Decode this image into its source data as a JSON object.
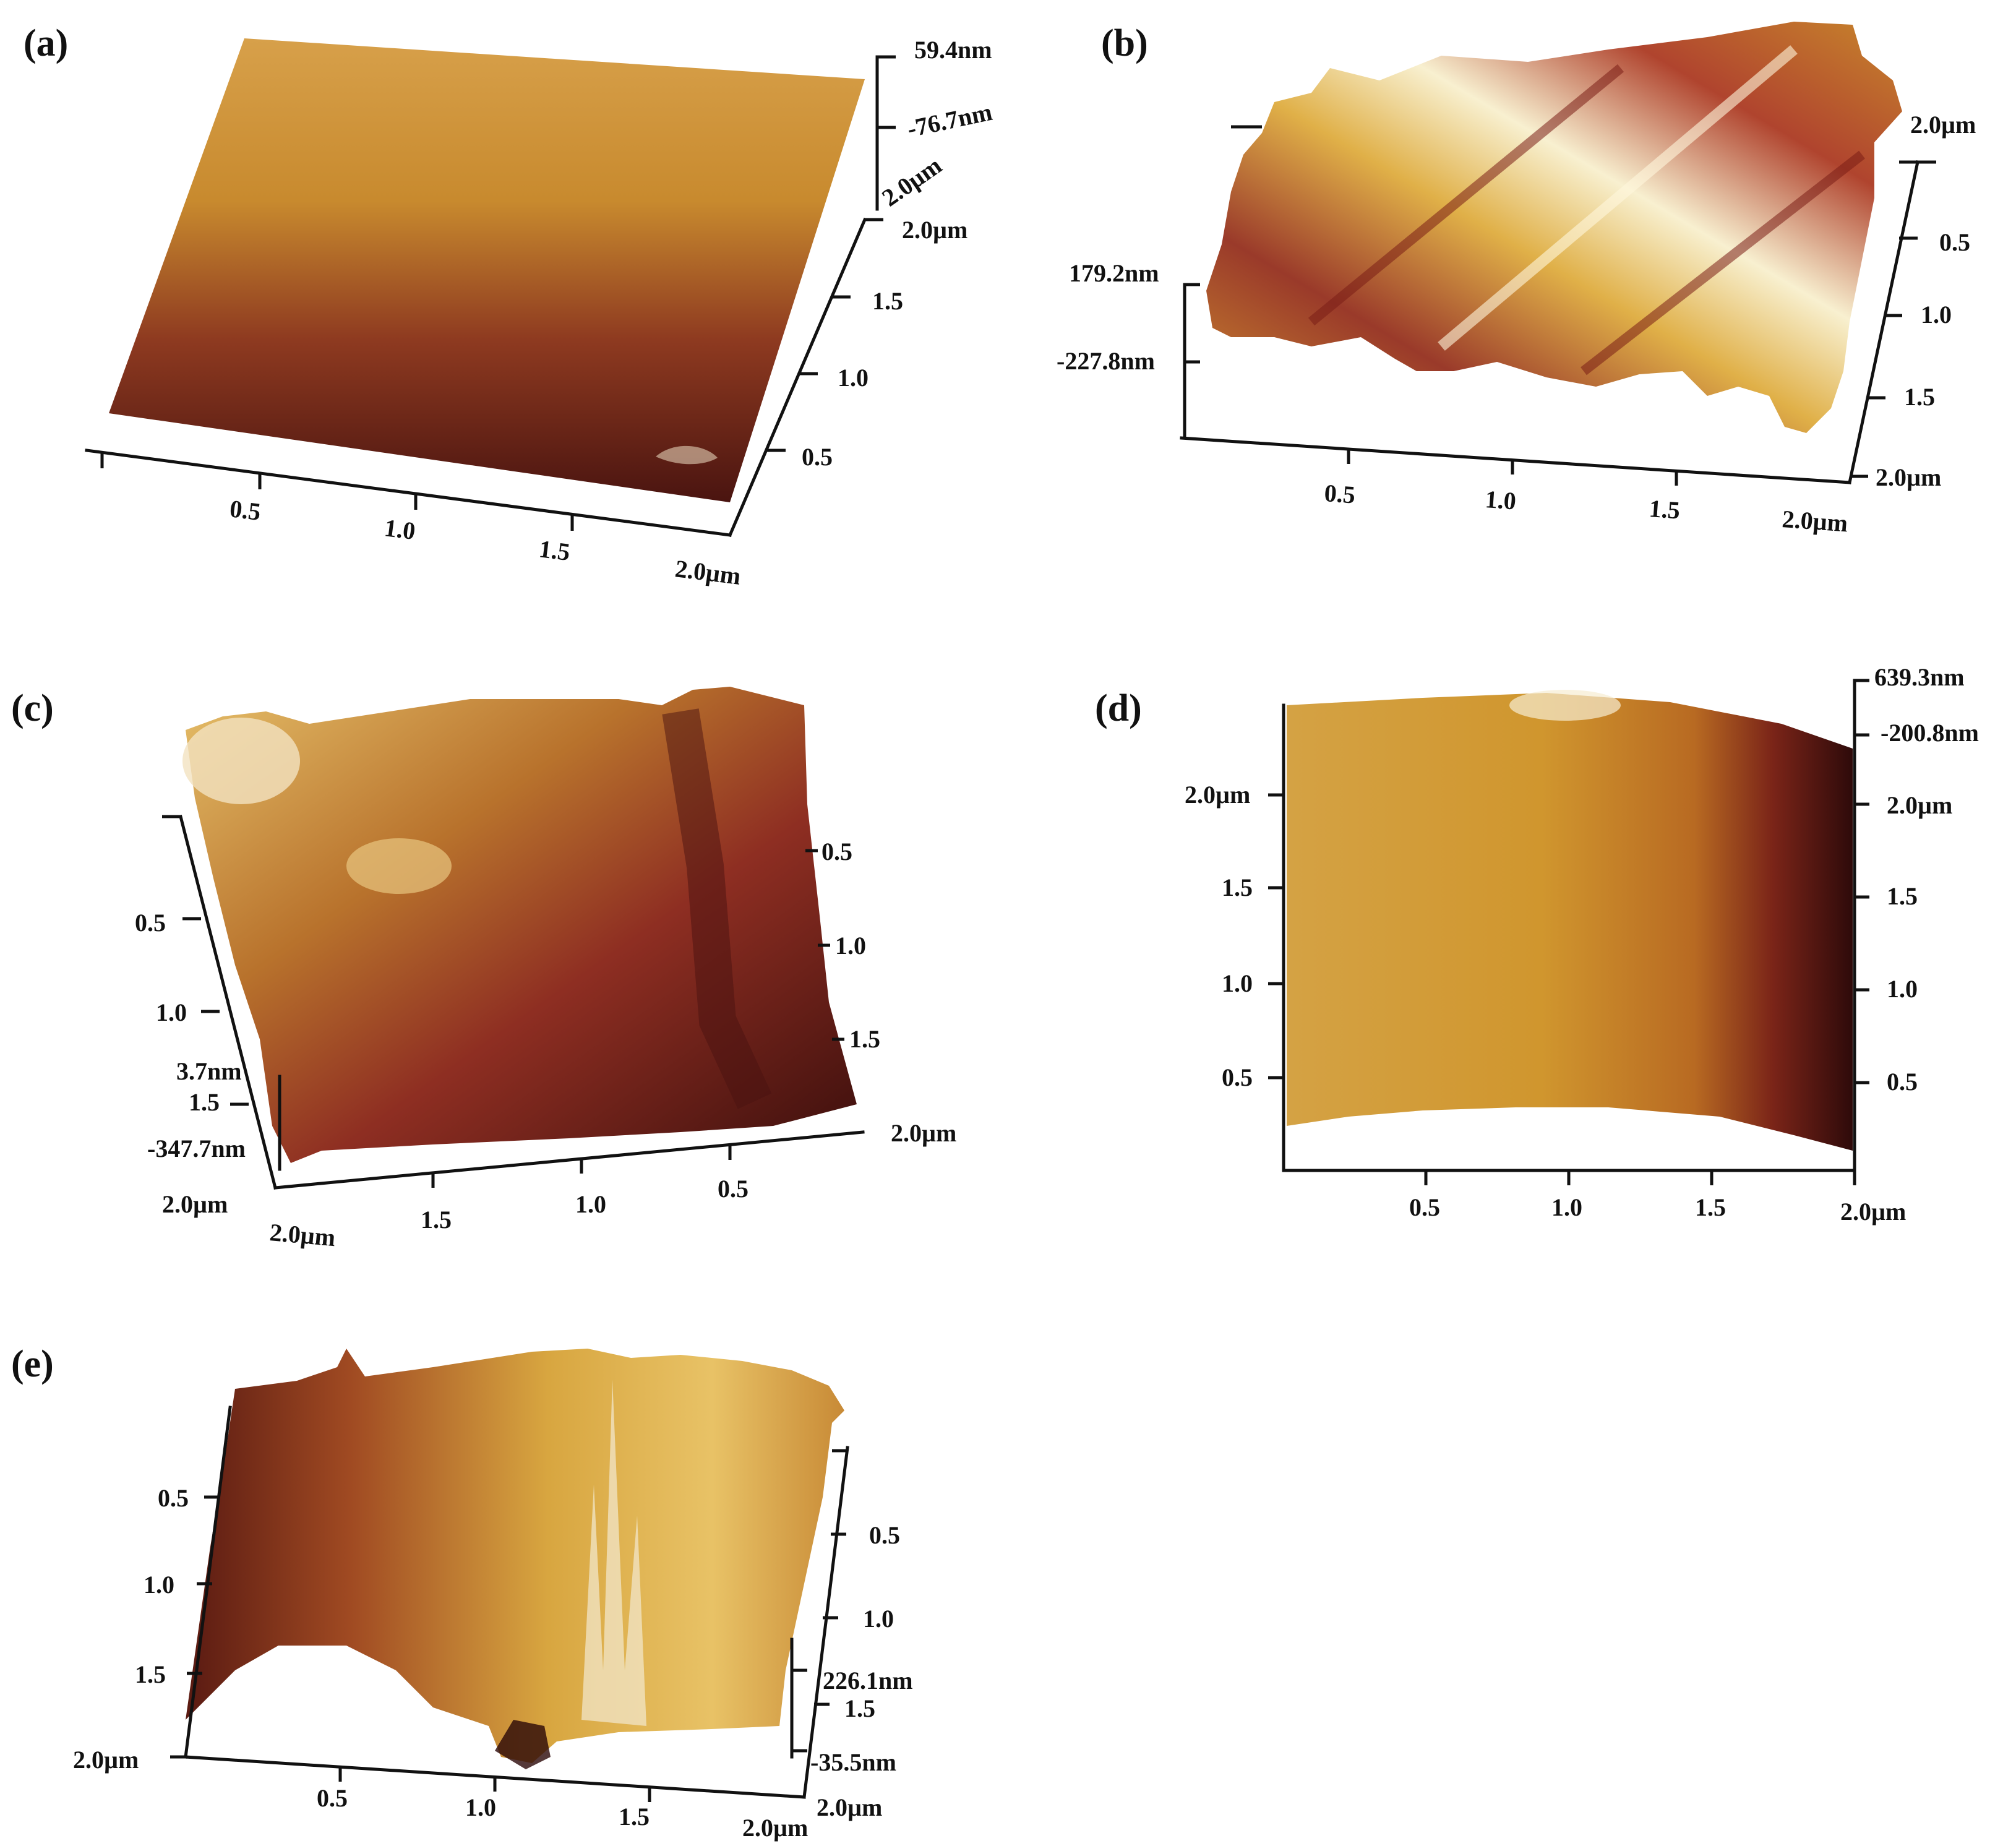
{
  "panels": [
    {
      "label": "(a)",
      "z_axis": {
        "max": "59.4nm",
        "min": "-76.7nm",
        "top_y": "2.0µm"
      },
      "x_axis": [
        "0.5",
        "1.0",
        "1.5",
        "2.0µm"
      ],
      "y_axis": [
        "0.5",
        "1.0",
        "1.5",
        "2.0µm"
      ]
    },
    {
      "label": "(b)",
      "z_axis": {
        "max": "179.2nm",
        "min": "-227.8nm"
      },
      "x_axis": [
        "0.5",
        "1.0",
        "1.5",
        "2.0µm"
      ],
      "y_axis": [
        "2.0µm",
        "0.5",
        "1.0",
        "1.5",
        "2.0µm"
      ]
    },
    {
      "label": "(c)",
      "z_axis": {
        "max": "3.7nm",
        "min": "-347.7nm"
      },
      "x_axis": [
        "2.0µm",
        "1.5",
        "1.0",
        "0.5",
        "2.0µm"
      ],
      "y_left": [
        "0.5",
        "1.0",
        "1.5",
        "2.0µm"
      ],
      "y_right": [
        "0.5",
        "1.0",
        "1.5"
      ]
    },
    {
      "label": "(d)",
      "z_axis": {
        "max": "639.3nm",
        "min": "-200.8nm"
      },
      "x_axis": [
        "0.5",
        "1.0",
        "1.5",
        "2.0µm"
      ],
      "y_left": [
        "2.0µm",
        "1.5",
        "1.0",
        "0.5"
      ],
      "y_right": [
        "2.0µm",
        "1.5",
        "1.0",
        "0.5"
      ]
    },
    {
      "label": "(e)",
      "z_axis": {
        "max": "226.1nm",
        "min": "-35.5nm"
      },
      "x_axis": [
        "0.5",
        "1.0",
        "1.5",
        "2.0µm"
      ],
      "y_left": [
        "0.5",
        "1.0",
        "1.5",
        "2.0µm"
      ],
      "y_right": [
        "0.5",
        "1.0",
        "1.5",
        "2.0µm"
      ]
    }
  ],
  "colors": {
    "dark": "#3a1410",
    "mid": "#8a2a1c",
    "gold": "#c8922a",
    "light": "#f4e3a8"
  }
}
